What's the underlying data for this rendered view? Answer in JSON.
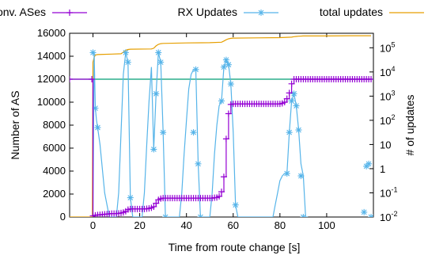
{
  "chart_data": {
    "type": "line",
    "xlabel": "Time from route change [s]",
    "ylabel_left": "Number of AS",
    "ylabel_right": "# of updates",
    "xlim": [
      -10,
      120
    ],
    "ylim_left": [
      0,
      16000
    ],
    "ylim_right_log10": [
      -2,
      5.6
    ],
    "x_ticks": [
      "0",
      "20",
      "40",
      "60",
      "80",
      "100"
    ],
    "x_tick_values": [
      0,
      20,
      40,
      60,
      80,
      100
    ],
    "y_left_ticks": [
      "0",
      "2000",
      "4000",
      "6000",
      "8000",
      "10000",
      "12000",
      "14000",
      "16000"
    ],
    "y_left_tick_values": [
      0,
      2000,
      4000,
      6000,
      8000,
      10000,
      12000,
      14000,
      16000
    ],
    "y_right_ticks": [
      {
        "base": "10",
        "exp": "-2",
        "value": -2
      },
      {
        "base": "10",
        "exp": "-1",
        "value": -1
      },
      {
        "base": "1",
        "exp": "",
        "value": 0
      },
      {
        "base": "10",
        "exp": "",
        "value": 1
      },
      {
        "base": "10",
        "exp": "2",
        "value": 2
      },
      {
        "base": "10",
        "exp": "3",
        "value": 3
      },
      {
        "base": "10",
        "exp": "4",
        "value": 4
      },
      {
        "base": "10",
        "exp": "5",
        "value": 5
      }
    ],
    "legend_placement": "top",
    "series": [
      {
        "name": "Conv. ASes",
        "axis": "left",
        "color": "#9400d3",
        "marker": "plus",
        "x": [
          -10,
          -0.5,
          0,
          1,
          2,
          3,
          4,
          5,
          6,
          7,
          8,
          9,
          10,
          11,
          12,
          13,
          14,
          15,
          16,
          17,
          18,
          19,
          20,
          21,
          22,
          23,
          24,
          25,
          26,
          27,
          28,
          29,
          30,
          31,
          32,
          33,
          34,
          35,
          36,
          37,
          38,
          39,
          40,
          41,
          42,
          43,
          44,
          45,
          46,
          47,
          48,
          49,
          50,
          51,
          52,
          53,
          54,
          55,
          56,
          57,
          58,
          59,
          60,
          61,
          62,
          63,
          64,
          65,
          66,
          67,
          68,
          69,
          70,
          71,
          72,
          73,
          74,
          75,
          76,
          77,
          78,
          79,
          80,
          81,
          82,
          83,
          84,
          85,
          86,
          87,
          88,
          89,
          90,
          91,
          92,
          93,
          94,
          95,
          96,
          97,
          98,
          99,
          100,
          101,
          102,
          103,
          104,
          105,
          106,
          107,
          108,
          109,
          110,
          111,
          112,
          113,
          114,
          115,
          116,
          117,
          118,
          119
        ],
        "y": [
          12000,
          12000,
          100,
          150,
          180,
          200,
          220,
          240,
          260,
          280,
          300,
          300,
          300,
          320,
          350,
          400,
          500,
          650,
          700,
          700,
          700,
          700,
          700,
          700,
          700,
          720,
          750,
          800,
          900,
          1200,
          1500,
          1600,
          1650,
          1650,
          1650,
          1650,
          1650,
          1650,
          1650,
          1650,
          1650,
          1650,
          1650,
          1650,
          1650,
          1650,
          1650,
          1650,
          1650,
          1650,
          1650,
          1650,
          1650,
          1650,
          1680,
          1700,
          1800,
          2200,
          3500,
          6800,
          9000,
          9800,
          9850,
          9850,
          9850,
          9850,
          9850,
          9850,
          9850,
          9850,
          9850,
          9850,
          9850,
          9850,
          9850,
          9850,
          9850,
          9850,
          9850,
          9850,
          9850,
          9850,
          9850,
          9900,
          10000,
          10300,
          10800,
          11600,
          12000,
          12000,
          12000,
          12000,
          12000,
          12000,
          12000,
          12000,
          12000,
          12000,
          12000,
          12000,
          12000,
          12000,
          12000,
          12000,
          12000,
          12000,
          12000,
          12000,
          12000,
          12000,
          12000,
          12000,
          12000,
          12000,
          12000,
          12000,
          12000,
          12000,
          12000,
          12000,
          12000,
          12000
        ]
      },
      {
        "name": "RX Updates",
        "axis": "right",
        "color": "#56b4e9",
        "marker": "star",
        "points_x": [
          0,
          1,
          2,
          14,
          15,
          16,
          26,
          27,
          28,
          29,
          30,
          31,
          43,
          44,
          45,
          46,
          55,
          56,
          57,
          58,
          59,
          61,
          83,
          84,
          85,
          86,
          87,
          88,
          89,
          90,
          116,
          117,
          118,
          119
        ],
        "points_log10": [
          4.8,
          2.5,
          1.7,
          4.8,
          4.4,
          -1.2,
          0.8,
          3.1,
          4.8,
          4.4,
          1.5,
          -2,
          1.5,
          4.1,
          0.2,
          -2,
          2.8,
          4.2,
          4.5,
          4.3,
          3.5,
          -1.5,
          -0.2,
          1.5,
          2.8,
          3.1,
          2.6,
          1.6,
          -0.3,
          -2,
          -1.8,
          0.1,
          0.2,
          -2
        ],
        "curve_x": [
          0,
          0.5,
          1,
          1.5,
          2,
          3,
          5,
          7,
          8,
          9,
          10,
          11,
          12,
          13,
          14,
          15,
          16,
          17,
          18,
          19,
          20,
          21,
          22,
          23,
          24,
          25,
          26,
          27,
          28,
          29,
          30,
          31,
          32,
          33,
          34,
          35,
          36,
          37,
          38,
          39,
          40,
          41,
          42,
          43,
          44,
          45,
          46,
          47,
          48,
          49,
          50,
          51,
          52,
          53,
          54,
          55,
          56,
          57,
          58,
          59,
          60,
          61,
          62,
          63,
          64,
          65,
          66,
          67,
          68,
          69,
          70,
          71,
          72,
          73,
          74,
          75,
          76,
          77,
          78,
          79,
          80,
          81,
          82,
          83,
          84,
          85,
          86,
          87,
          88,
          89,
          90,
          91,
          92
        ],
        "curve_log10": [
          -2,
          4.8,
          2.5,
          2.0,
          1.7,
          1.0,
          -1.0,
          -2,
          -2,
          -2,
          -2,
          -1.0,
          1.5,
          3.9,
          4.8,
          4.4,
          -1.2,
          -2,
          -2,
          -2,
          -2,
          -2,
          -1.0,
          1.0,
          2.8,
          4.2,
          0.8,
          3.1,
          4.8,
          4.4,
          1.5,
          -2,
          -2,
          -2,
          -2,
          -2,
          -2,
          -2,
          -1.0,
          0.6,
          2.0,
          3.3,
          3.9,
          4.1,
          4.1,
          0.2,
          -2,
          -2,
          -2,
          -2,
          -2,
          -1.0,
          0.6,
          1.8,
          2.6,
          2.8,
          4.2,
          4.5,
          4.3,
          3.5,
          1.5,
          -1.5,
          -2,
          -2,
          -2,
          -2,
          -2,
          -2,
          -2,
          -2,
          -2,
          -2,
          -2,
          -2,
          -2,
          -2,
          -2,
          -2,
          -1.5,
          -1.0,
          -0.5,
          -0.3,
          -0.2,
          -0.2,
          1.5,
          2.8,
          3.1,
          2.6,
          1.6,
          0.2,
          -0.3,
          -2,
          -2
        ]
      },
      {
        "name": "total updates",
        "axis": "right",
        "color": "#e69f00",
        "marker": "none",
        "x": [
          -10,
          -0.3,
          0,
          0.5,
          1,
          2,
          8,
          12,
          13,
          14,
          15,
          16,
          25,
          26,
          27,
          28,
          29,
          30,
          40,
          50,
          55,
          56,
          57,
          58,
          59,
          60,
          70,
          80,
          85,
          86,
          87,
          88,
          90,
          100,
          110,
          119
        ],
        "log10": [
          -2,
          -2,
          4.4,
          4.6,
          4.7,
          4.72,
          4.74,
          4.75,
          4.82,
          4.9,
          4.93,
          4.94,
          4.95,
          4.98,
          5.08,
          5.14,
          5.17,
          5.18,
          5.2,
          5.21,
          5.23,
          5.28,
          5.33,
          5.37,
          5.39,
          5.4,
          5.41,
          5.42,
          5.44,
          5.46,
          5.47,
          5.48,
          5.49,
          5.49,
          5.5,
          5.5
        ]
      },
      {
        "name": "",
        "axis": "left",
        "color": "#009e73",
        "marker": "none",
        "x": [
          -10,
          120
        ],
        "y": [
          12000,
          12000
        ]
      }
    ]
  }
}
